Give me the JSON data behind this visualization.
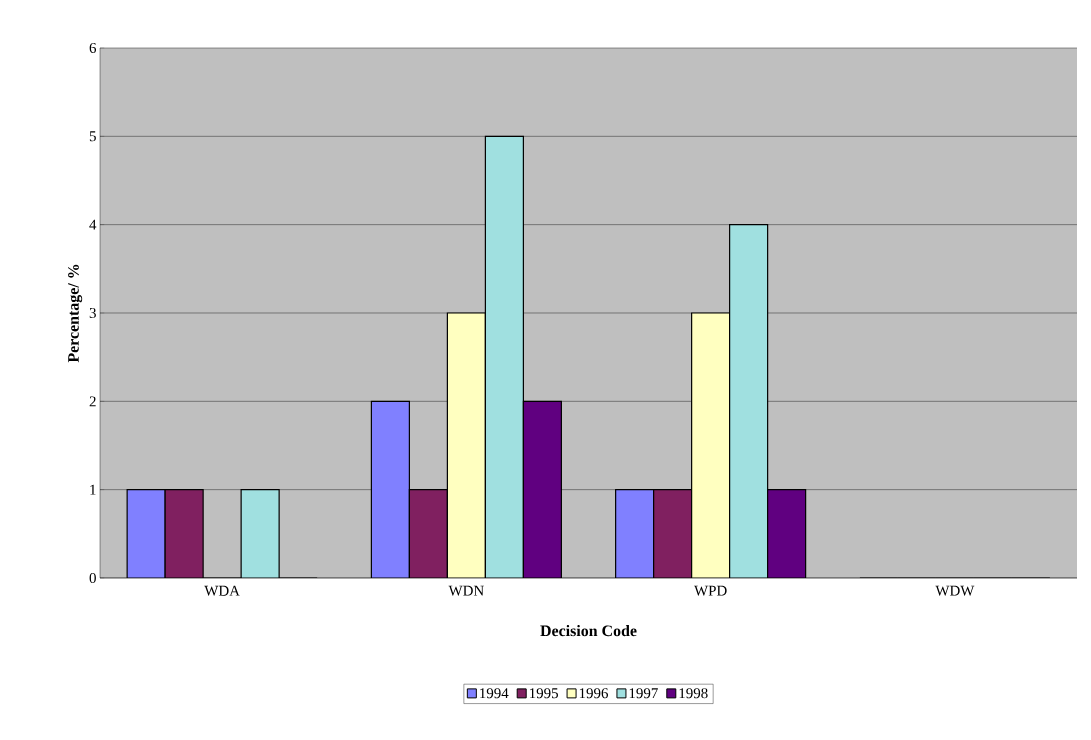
{
  "chart_data": {
    "type": "bar",
    "xlabel": "Decision Code",
    "ylabel": "Percentage/ %",
    "categories": [
      "WDA",
      "WDN",
      "WPD",
      "WDW"
    ],
    "series": [
      {
        "name": "1994",
        "color": "#8080ff",
        "values": [
          1,
          2,
          1,
          0
        ]
      },
      {
        "name": "1995",
        "color": "#802060",
        "values": [
          1,
          1,
          1,
          0
        ]
      },
      {
        "name": "1996",
        "color": "#ffffc0",
        "values": [
          0,
          3,
          3,
          0
        ]
      },
      {
        "name": "1997",
        "color": "#a0e0e0",
        "values": [
          1,
          5,
          4,
          0
        ]
      },
      {
        "name": "1998",
        "color": "#600080",
        "values": [
          0,
          2,
          1,
          0
        ]
      }
    ],
    "ylim": [
      0,
      6
    ],
    "yticks": [
      0,
      1,
      2,
      3,
      4,
      5,
      6
    ],
    "grid": "y",
    "legend": "bottom"
  }
}
